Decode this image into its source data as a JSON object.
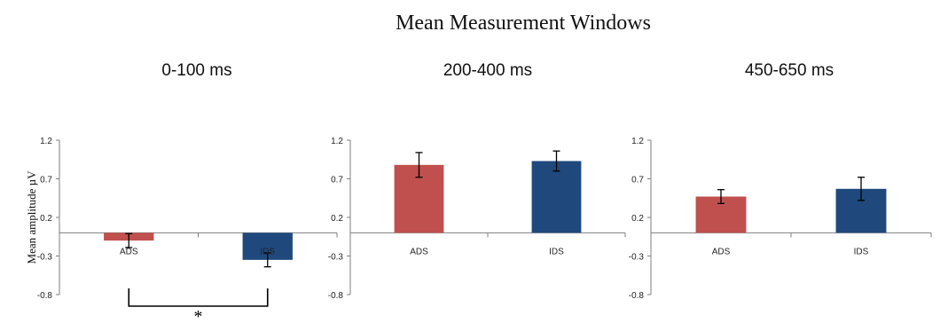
{
  "figure": {
    "title": "Mean Measurement Windows"
  },
  "chart_data": [
    {
      "type": "bar",
      "title": "0-100 ms",
      "ylabel": "Mean amplitude µV",
      "categories": [
        "ADS",
        "IDS"
      ],
      "values": [
        -0.1,
        -0.35
      ],
      "error": [
        0.09,
        0.09
      ],
      "colors": [
        "#c0504d",
        "#1f497d"
      ],
      "ylim": [
        -0.8,
        1.2
      ],
      "yticks": [
        "1.2",
        "0.7",
        "0.2",
        "-0.3",
        "-0.8"
      ],
      "grid": false,
      "significance": {
        "between": [
          "ADS",
          "IDS"
        ],
        "label": "*"
      }
    },
    {
      "type": "bar",
      "title": "200-400 ms",
      "ylabel": "",
      "categories": [
        "ADS",
        "IDS"
      ],
      "values": [
        0.88,
        0.93
      ],
      "error": [
        0.16,
        0.13
      ],
      "colors": [
        "#c0504d",
        "#1f497d"
      ],
      "ylim": [
        -0.8,
        1.2
      ],
      "yticks": [
        "1.2",
        "0.7",
        "0.2",
        "-0.3",
        "-0.8"
      ],
      "grid": false
    },
    {
      "type": "bar",
      "title": "450-650 ms",
      "ylabel": "",
      "categories": [
        "ADS",
        "IDS"
      ],
      "values": [
        0.47,
        0.57
      ],
      "error": [
        0.09,
        0.15
      ],
      "colors": [
        "#c0504d",
        "#1f497d"
      ],
      "ylim": [
        -0.8,
        1.2
      ],
      "yticks": [
        "1.2",
        "0.7",
        "0.2",
        "-0.3",
        "-0.8"
      ],
      "grid": false
    }
  ]
}
